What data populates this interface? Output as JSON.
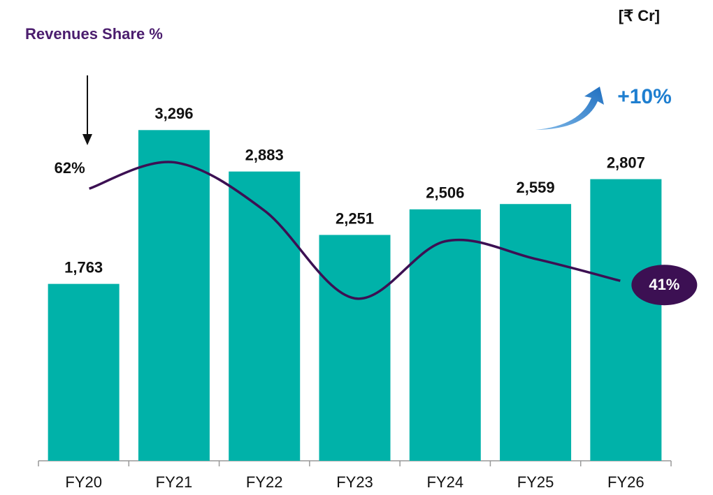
{
  "chart_data": {
    "type": "bar",
    "subtitle": "Revenues Share %",
    "unit_label": "[₹ Cr]",
    "annotation": "+10%",
    "categories": [
      "FY20",
      "FY21",
      "FY22",
      "FY23",
      "FY24",
      "FY25",
      "FY26"
    ],
    "values": [
      1763,
      3296,
      2883,
      2251,
      2506,
      2559,
      2807
    ],
    "value_labels": [
      "1,763",
      "3,296",
      "2,883",
      "2,251",
      "2,506",
      "2,559",
      "2,807"
    ],
    "color": "#00b2a9",
    "ylim": [
      0,
      3500
    ],
    "line": {
      "type": "line",
      "axis": "y2",
      "color": "#3c1053",
      "values": [
        62,
        68,
        57,
        37,
        50,
        46,
        41
      ],
      "value_labels": [
        "62%",
        null,
        null,
        null,
        null,
        null,
        "41%"
      ]
    },
    "y2lim": [
      0,
      80
    ]
  }
}
